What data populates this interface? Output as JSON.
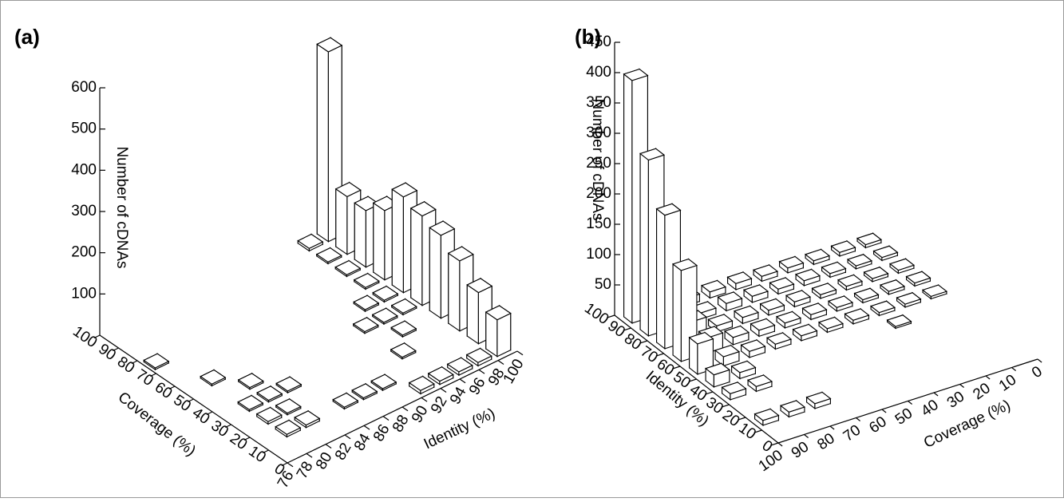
{
  "chart_data": [
    {
      "type": "bar3d",
      "panel_label": "(a)",
      "x_label": "Identity (%)",
      "y_label": "Coverage (%)",
      "z_label": "Number of cDNAs",
      "color": "#ffffff",
      "xlim": [
        76,
        100
      ],
      "xticks": [
        76,
        78,
        80,
        82,
        84,
        86,
        88,
        90,
        92,
        94,
        96,
        98,
        100
      ],
      "ylim": [
        0,
        100
      ],
      "yticks": [
        0,
        10,
        20,
        30,
        40,
        50,
        60,
        70,
        80,
        90,
        100
      ],
      "zlim": [
        0,
        600
      ],
      "zticks": [
        100,
        200,
        300,
        400,
        500,
        600
      ],
      "bars": {
        "x": [
          99,
          99,
          99,
          99,
          99,
          99,
          99,
          99,
          99,
          99,
          97,
          97,
          97,
          97,
          97,
          97,
          95,
          95,
          95,
          93,
          93,
          91,
          93,
          95,
          97,
          77,
          79,
          81,
          79,
          81,
          83,
          79,
          81,
          79,
          81,
          85,
          87,
          89
        ],
        "y": [
          95,
          85,
          75,
          65,
          55,
          45,
          35,
          25,
          15,
          5,
          95,
          85,
          75,
          65,
          55,
          45,
          55,
          45,
          35,
          45,
          25,
          5,
          5,
          5,
          5,
          75,
          55,
          45,
          35,
          35,
          35,
          25,
          25,
          15,
          15,
          15,
          15,
          15
        ],
        "values": [
          460,
          140,
          137,
          168,
          232,
          217,
          201,
          170,
          124,
          89,
          6,
          4,
          4,
          4,
          4,
          4,
          4,
          4,
          4,
          4,
          4,
          8,
          8,
          8,
          8,
          4,
          4,
          4,
          4,
          4,
          4,
          6,
          4,
          6,
          6,
          4,
          4,
          4
        ]
      }
    },
    {
      "type": "bar3d",
      "panel_label": "(b)",
      "x_label": "Identity (%)",
      "y_label": "Coverage (%)",
      "z_label": "Number of cDNAs",
      "color": "#ffffff",
      "xlim": [
        0,
        100
      ],
      "xticks": [
        0,
        10,
        20,
        30,
        40,
        50,
        60,
        70,
        80,
        90,
        100
      ],
      "ylim": [
        100,
        0
      ],
      "yticks": [
        100,
        90,
        80,
        70,
        60,
        50,
        40,
        30,
        20,
        10,
        0
      ],
      "zlim": [
        0,
        450
      ],
      "zticks": [
        50,
        100,
        150,
        200,
        250,
        300,
        350,
        400,
        450
      ],
      "bars": {
        "x": [
          95,
          85,
          75,
          65,
          55,
          45,
          35,
          95,
          85,
          75,
          65,
          55,
          45,
          35,
          95,
          95,
          95,
          95,
          95,
          95,
          95,
          95,
          85,
          85,
          85,
          85,
          85,
          85,
          85,
          85,
          75,
          75,
          75,
          75,
          75,
          75,
          75,
          75,
          65,
          65,
          65,
          65,
          65,
          65,
          65,
          65,
          55,
          55,
          55,
          55,
          55,
          55,
          55,
          55,
          15,
          15,
          15,
          45
        ],
        "y": [
          95,
          95,
          95,
          95,
          95,
          95,
          95,
          85,
          85,
          85,
          85,
          85,
          85,
          85,
          75,
          65,
          55,
          45,
          35,
          25,
          15,
          5,
          75,
          65,
          55,
          45,
          35,
          25,
          15,
          5,
          75,
          65,
          55,
          45,
          35,
          25,
          15,
          5,
          75,
          65,
          55,
          45,
          35,
          25,
          15,
          5,
          75,
          65,
          55,
          45,
          35,
          25,
          15,
          5,
          95,
          85,
          75,
          25
        ],
        "values": [
          400,
          290,
          220,
          150,
          50,
          20,
          10,
          60,
          45,
          30,
          25,
          15,
          10,
          8,
          12,
          10,
          10,
          8,
          8,
          6,
          6,
          5,
          10,
          12,
          10,
          8,
          8,
          6,
          5,
          5,
          10,
          10,
          8,
          8,
          6,
          6,
          5,
          5,
          12,
          10,
          8,
          8,
          6,
          5,
          5,
          5,
          10,
          8,
          8,
          6,
          6,
          5,
          5,
          4,
          8,
          8,
          8,
          3
        ]
      }
    }
  ]
}
